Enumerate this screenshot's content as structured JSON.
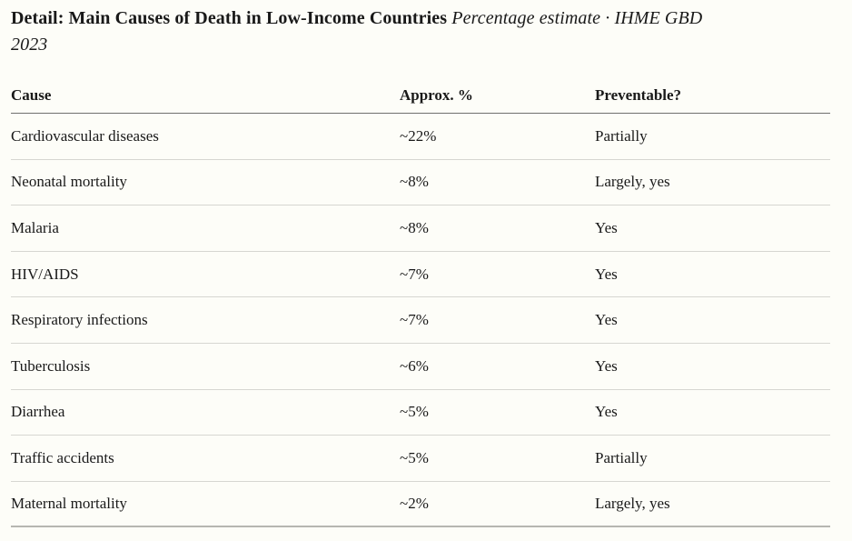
{
  "colors": {
    "background": "#fdfdf8",
    "text": "#191919",
    "header_rule": "#6f6f6f",
    "row_rule": "#d6d6d1",
    "bottom_rule": "#b6b6b1"
  },
  "header": {
    "title_bold": "Detail: Main Causes of Death in Low-Income Countries",
    "subtitle_italic": "Percentage estimate · IHME GBD 2023",
    "subtitle_line1": "Percentage estimate · IHME GBD",
    "subtitle_line2": "2023"
  },
  "chart_data": {
    "type": "table",
    "title": "Detail: Main Causes of Death in Low-Income Countries",
    "subtitle": "Percentage estimate · IHME GBD 2023",
    "columns": [
      "Cause",
      "Approx. %",
      "Preventable?"
    ],
    "rows": [
      {
        "cause": "Cardiovascular diseases",
        "approx_percent": "~22%",
        "preventable": "Partially"
      },
      {
        "cause": "Neonatal mortality",
        "approx_percent": "~8%",
        "preventable": "Largely, yes"
      },
      {
        "cause": "Malaria",
        "approx_percent": "~8%",
        "preventable": "Yes"
      },
      {
        "cause": "HIV/AIDS",
        "approx_percent": "~7%",
        "preventable": "Yes"
      },
      {
        "cause": "Respiratory infections",
        "approx_percent": "~7%",
        "preventable": "Yes"
      },
      {
        "cause": "Tuberculosis",
        "approx_percent": "~6%",
        "preventable": "Yes"
      },
      {
        "cause": "Diarrhea",
        "approx_percent": "~5%",
        "preventable": "Yes"
      },
      {
        "cause": "Traffic accidents",
        "approx_percent": "~5%",
        "preventable": "Partially"
      },
      {
        "cause": "Maternal mortality",
        "approx_percent": "~2%",
        "preventable": "Largely, yes"
      }
    ]
  }
}
